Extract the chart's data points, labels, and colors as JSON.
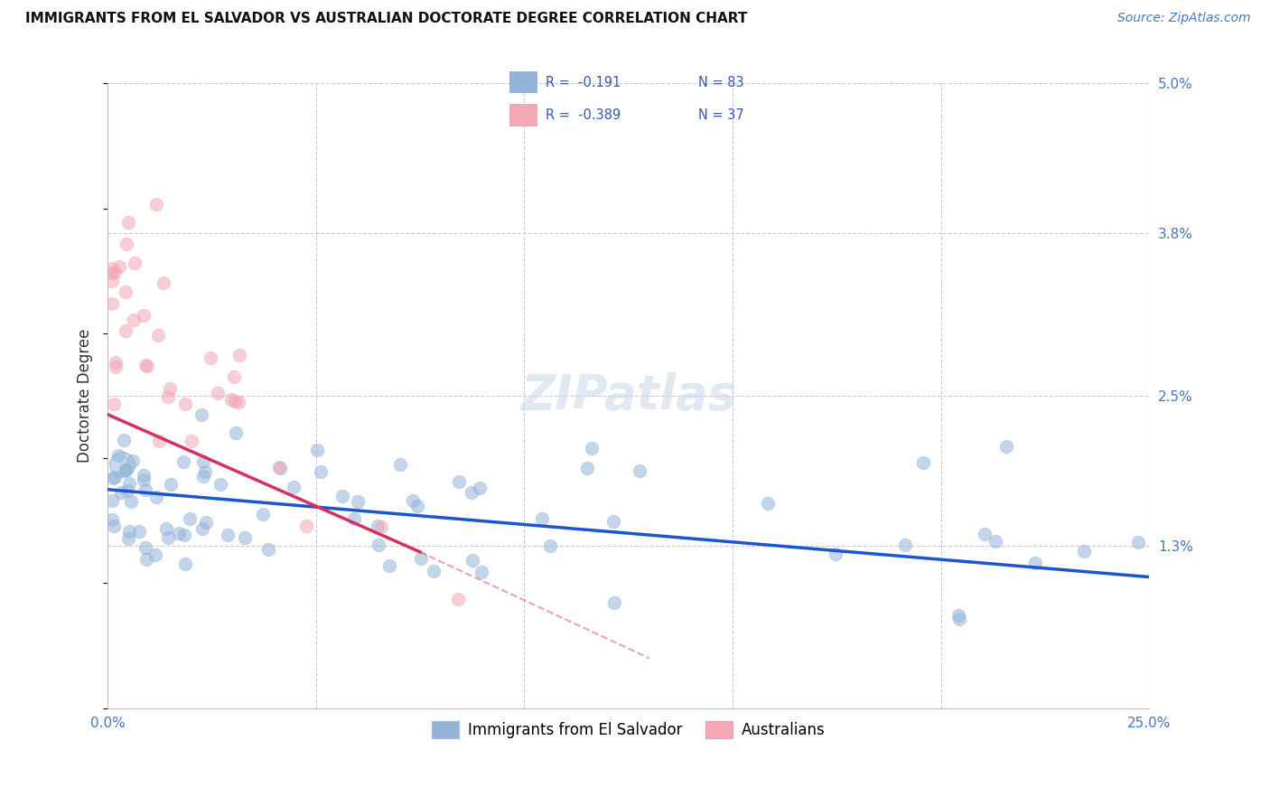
{
  "title": "IMMIGRANTS FROM EL SALVADOR VS AUSTRALIAN DOCTORATE DEGREE CORRELATION CHART",
  "source": "Source: ZipAtlas.com",
  "ylabel": "Doctorate Degree",
  "xlim": [
    0.0,
    25.0
  ],
  "ylim": [
    0.0,
    5.0
  ],
  "xticks": [
    0.0,
    5.0,
    10.0,
    15.0,
    20.0,
    25.0
  ],
  "xticklabels": [
    "0.0%",
    "",
    "",
    "",
    "",
    "25.0%"
  ],
  "ytick_vals": [
    0.0,
    1.3,
    2.5,
    3.8,
    5.0
  ],
  "yticklabels_right": [
    "",
    "1.3%",
    "2.5%",
    "3.8%",
    "5.0%"
  ],
  "grid_color": "#cccccc",
  "background_color": "#ffffff",
  "legend_label_blue": "Immigrants from El Salvador",
  "legend_label_pink": "Australians",
  "blue_color": "#92b4d9",
  "pink_color": "#f4a7b5",
  "blue_line_color": "#1a56cc",
  "pink_line_color": "#d63060",
  "blue_line_start_y": 1.75,
  "blue_line_end_y": 1.05,
  "pink_line_start_x": 0.0,
  "pink_line_start_y": 2.35,
  "pink_line_end_x": 7.5,
  "pink_line_end_y": 1.25,
  "pink_dash_end_x": 13.0,
  "pink_dash_end_y": 0.4,
  "R_blue_text": "R =  -0.191",
  "N_blue_text": "N = 83",
  "R_pink_text": "R =  -0.389",
  "N_pink_text": "N = 37",
  "seed_blue": 42,
  "seed_pink": 99
}
